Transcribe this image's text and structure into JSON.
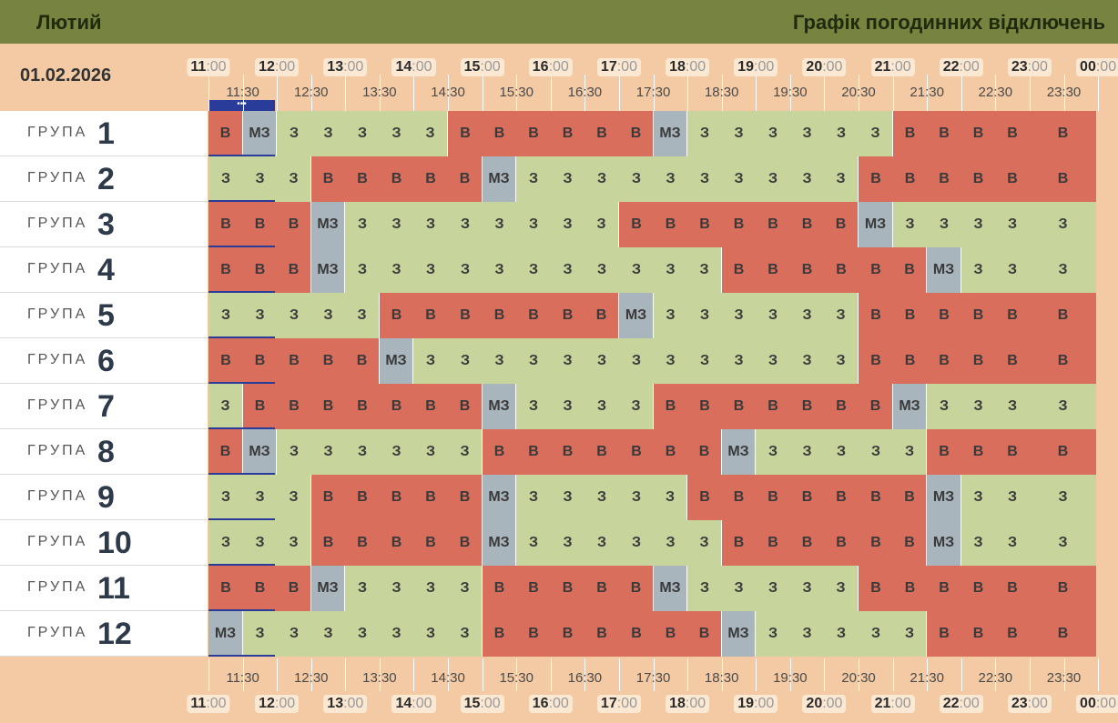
{
  "header": {
    "month": "Лютий",
    "title": "Графік погодинних відключень"
  },
  "date": "01.02.2026",
  "now_marker": "•••",
  "hours": [
    {
      "h": "11",
      "m": ":00"
    },
    {
      "h": "12",
      "m": ":00"
    },
    {
      "h": "13",
      "m": ":00"
    },
    {
      "h": "14",
      "m": ":00"
    },
    {
      "h": "15",
      "m": ":00"
    },
    {
      "h": "16",
      "m": ":00"
    },
    {
      "h": "17",
      "m": ":00"
    },
    {
      "h": "18",
      "m": ":00"
    },
    {
      "h": "19",
      "m": ":00"
    },
    {
      "h": "20",
      "m": ":00"
    },
    {
      "h": "21",
      "m": ":00"
    },
    {
      "h": "22",
      "m": ":00"
    },
    {
      "h": "23",
      "m": ":00"
    },
    {
      "h": "00",
      "m": ":00"
    }
  ],
  "half_hours": [
    "11:30",
    "12:30",
    "13:30",
    "14:30",
    "15:30",
    "16:30",
    "17:30",
    "18:30",
    "19:30",
    "20:30",
    "21:30",
    "22:30",
    "23:30"
  ],
  "group_word": "ГРУПА",
  "groups": [
    {
      "num": "1",
      "slots": [
        "В",
        "МЗ",
        "З",
        "З",
        "З",
        "З",
        "З",
        "В",
        "В",
        "В",
        "В",
        "В",
        "В",
        "МЗ",
        "З",
        "З",
        "З",
        "З",
        "З",
        "З",
        "В",
        "В",
        "В",
        "В",
        "В"
      ]
    },
    {
      "num": "2",
      "slots": [
        "З",
        "З",
        "З",
        "В",
        "В",
        "В",
        "В",
        "В",
        "МЗ",
        "З",
        "З",
        "З",
        "З",
        "З",
        "З",
        "З",
        "З",
        "З",
        "З",
        "В",
        "В",
        "В",
        "В",
        "В",
        "В"
      ]
    },
    {
      "num": "3",
      "slots": [
        "В",
        "В",
        "В",
        "МЗ",
        "З",
        "З",
        "З",
        "З",
        "З",
        "З",
        "З",
        "З",
        "В",
        "В",
        "В",
        "В",
        "В",
        "В",
        "В",
        "МЗ",
        "З",
        "З",
        "З",
        "З",
        "З"
      ]
    },
    {
      "num": "4",
      "slots": [
        "В",
        "В",
        "В",
        "МЗ",
        "З",
        "З",
        "З",
        "З",
        "З",
        "З",
        "З",
        "З",
        "З",
        "З",
        "З",
        "В",
        "В",
        "В",
        "В",
        "В",
        "В",
        "МЗ",
        "З",
        "З",
        "З"
      ]
    },
    {
      "num": "5",
      "slots": [
        "З",
        "З",
        "З",
        "З",
        "З",
        "В",
        "В",
        "В",
        "В",
        "В",
        "В",
        "В",
        "МЗ",
        "З",
        "З",
        "З",
        "З",
        "З",
        "З",
        "В",
        "В",
        "В",
        "В",
        "В",
        "В"
      ]
    },
    {
      "num": "6",
      "slots": [
        "В",
        "В",
        "В",
        "В",
        "В",
        "МЗ",
        "З",
        "З",
        "З",
        "З",
        "З",
        "З",
        "З",
        "З",
        "З",
        "З",
        "З",
        "З",
        "З",
        "В",
        "В",
        "В",
        "В",
        "В",
        "В"
      ]
    },
    {
      "num": "7",
      "slots": [
        "З",
        "В",
        "В",
        "В",
        "В",
        "В",
        "В",
        "В",
        "МЗ",
        "З",
        "З",
        "З",
        "З",
        "В",
        "В",
        "В",
        "В",
        "В",
        "В",
        "В",
        "МЗ",
        "З",
        "З",
        "З",
        "З"
      ]
    },
    {
      "num": "8",
      "slots": [
        "В",
        "МЗ",
        "З",
        "З",
        "З",
        "З",
        "З",
        "З",
        "В",
        "В",
        "В",
        "В",
        "В",
        "В",
        "В",
        "МЗ",
        "З",
        "З",
        "З",
        "З",
        "З",
        "В",
        "В",
        "В",
        "В"
      ]
    },
    {
      "num": "9",
      "slots": [
        "З",
        "З",
        "З",
        "В",
        "В",
        "В",
        "В",
        "В",
        "МЗ",
        "З",
        "З",
        "З",
        "З",
        "З",
        "В",
        "В",
        "В",
        "В",
        "В",
        "В",
        "В",
        "МЗ",
        "З",
        "З",
        "З"
      ]
    },
    {
      "num": "10",
      "slots": [
        "З",
        "З",
        "З",
        "В",
        "В",
        "В",
        "В",
        "В",
        "МЗ",
        "З",
        "З",
        "З",
        "З",
        "З",
        "З",
        "В",
        "В",
        "В",
        "В",
        "В",
        "В",
        "МЗ",
        "З",
        "З",
        "З"
      ]
    },
    {
      "num": "11",
      "slots": [
        "В",
        "В",
        "В",
        "МЗ",
        "З",
        "З",
        "З",
        "З",
        "В",
        "В",
        "В",
        "В",
        "В",
        "МЗ",
        "З",
        "З",
        "З",
        "З",
        "З",
        "В",
        "В",
        "В",
        "В",
        "В",
        "В"
      ]
    },
    {
      "num": "12",
      "slots": [
        "МЗ",
        "З",
        "З",
        "З",
        "З",
        "З",
        "З",
        "З",
        "В",
        "В",
        "В",
        "В",
        "В",
        "В",
        "В",
        "МЗ",
        "З",
        "З",
        "З",
        "З",
        "З",
        "В",
        "В",
        "В",
        "В"
      ]
    }
  ],
  "colors": {
    "off": "#da6e5c",
    "on": "#c7d49c",
    "maybe": "#a9b5bc",
    "header": "#778440",
    "background": "#f4caa4",
    "now_marker": "#2a3c9a"
  }
}
